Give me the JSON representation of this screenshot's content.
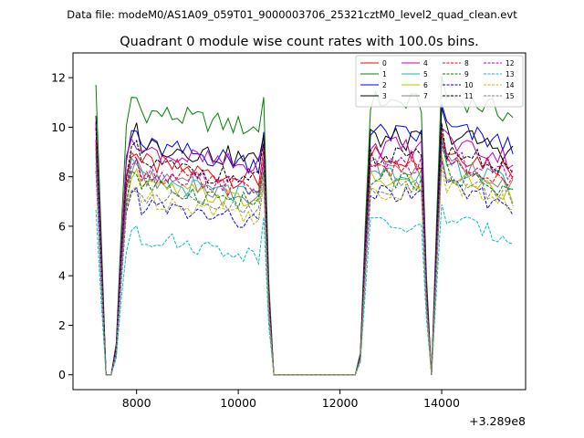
{
  "header": {
    "datafile": "Data file: modeM0/AS1A09_059T01_9000003706_25321cztM0_level2_quad_clean.evt"
  },
  "chart_data": {
    "type": "line",
    "title": "Quadrant 0 module wise count rates with 100.0s bins.",
    "xlabel": "",
    "ylabel": "",
    "x_offset_label": "+3.289e8",
    "xlim": [
      6750,
      15650
    ],
    "ylim": [
      -0.6,
      13.0
    ],
    "xticks": [
      8000,
      10000,
      12000,
      14000
    ],
    "xtick_labels": [
      "8000",
      "10000",
      "12000",
      "14000"
    ],
    "yticks": [
      0,
      2,
      4,
      6,
      8,
      10,
      12
    ],
    "ytick_labels": [
      "0",
      "2",
      "4",
      "6",
      "8",
      "10",
      "12"
    ],
    "grid": false,
    "legend_position": "top-right",
    "legend_columns": 4,
    "series": [
      {
        "name": "0",
        "color": "#ff0000",
        "dash": "solid",
        "level1": 8.6,
        "level2": 8.9,
        "amp": 0.45
      },
      {
        "name": "1",
        "color": "#008000",
        "dash": "solid",
        "level1": 10.7,
        "level2": 11.1,
        "amp": 0.45
      },
      {
        "name": "2",
        "color": "#0000ff",
        "dash": "solid",
        "level1": 9.3,
        "level2": 9.8,
        "amp": 0.45
      },
      {
        "name": "3",
        "color": "#000000",
        "dash": "solid",
        "level1": 9.4,
        "level2": 9.6,
        "amp": 0.45
      },
      {
        "name": "4",
        "color": "#bf00bf",
        "dash": "solid",
        "level1": 9.1,
        "level2": 9.3,
        "amp": 0.45
      },
      {
        "name": "5",
        "color": "#00bfbf",
        "dash": "solid",
        "level1": 7.9,
        "level2": 8.3,
        "amp": 0.4
      },
      {
        "name": "6",
        "color": "#bfbf00",
        "dash": "solid",
        "level1": 7.7,
        "level2": 7.9,
        "amp": 0.4
      },
      {
        "name": "7",
        "color": "#808080",
        "dash": "solid",
        "level1": 8.0,
        "level2": 8.4,
        "amp": 0.4
      },
      {
        "name": "8",
        "color": "#ff0000",
        "dash": "dashed",
        "level1": 8.2,
        "level2": 8.5,
        "amp": 0.4
      },
      {
        "name": "9",
        "color": "#008000",
        "dash": "dashed",
        "level1": 7.7,
        "level2": 8.0,
        "amp": 0.4
      },
      {
        "name": "10",
        "color": "#0000ff",
        "dash": "dashed",
        "level1": 6.9,
        "level2": 7.4,
        "amp": 0.4
      },
      {
        "name": "11",
        "color": "#000000",
        "dash": "dashed",
        "level1": 8.6,
        "level2": 8.9,
        "amp": 0.4
      },
      {
        "name": "12",
        "color": "#bf00bf",
        "dash": "dashed",
        "level1": 8.3,
        "level2": 8.6,
        "amp": 0.4
      },
      {
        "name": "13",
        "color": "#00bfbf",
        "dash": "dashed",
        "level1": 5.6,
        "level2": 6.1,
        "amp": 0.35
      },
      {
        "name": "14",
        "color": "#bfbf00",
        "dash": "dashed",
        "level1": 7.2,
        "level2": 7.5,
        "amp": 0.4
      },
      {
        "name": "15",
        "color": "#808080",
        "dash": "dashed",
        "level1": 7.3,
        "level2": 7.7,
        "amp": 0.4
      }
    ]
  }
}
